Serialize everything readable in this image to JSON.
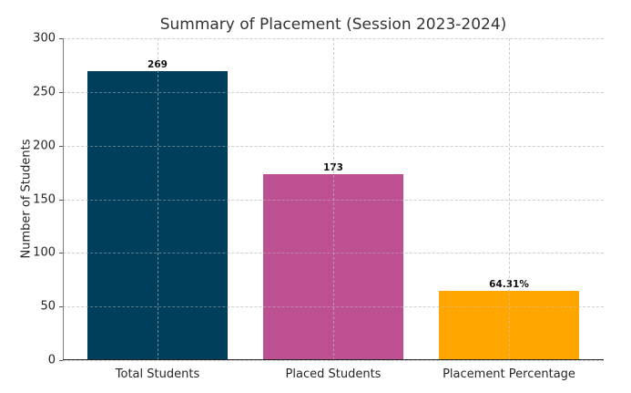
{
  "chart_data": {
    "type": "bar",
    "title": "Summary of Placement (Session 2023-2024)",
    "xlabel": "",
    "ylabel": "Number of Students",
    "categories": [
      "Total Students",
      "Placed Students",
      "Placement Percentage"
    ],
    "values": [
      269,
      173,
      64.31
    ],
    "bar_labels": [
      "269",
      "173",
      "64.31%"
    ],
    "colors": [
      "#003f5c",
      "#bc5090",
      "#ffa600"
    ],
    "ylim": [
      0,
      300
    ],
    "yticks": [
      0,
      50,
      100,
      150,
      200,
      250,
      300
    ],
    "grid": true,
    "legend": null
  }
}
